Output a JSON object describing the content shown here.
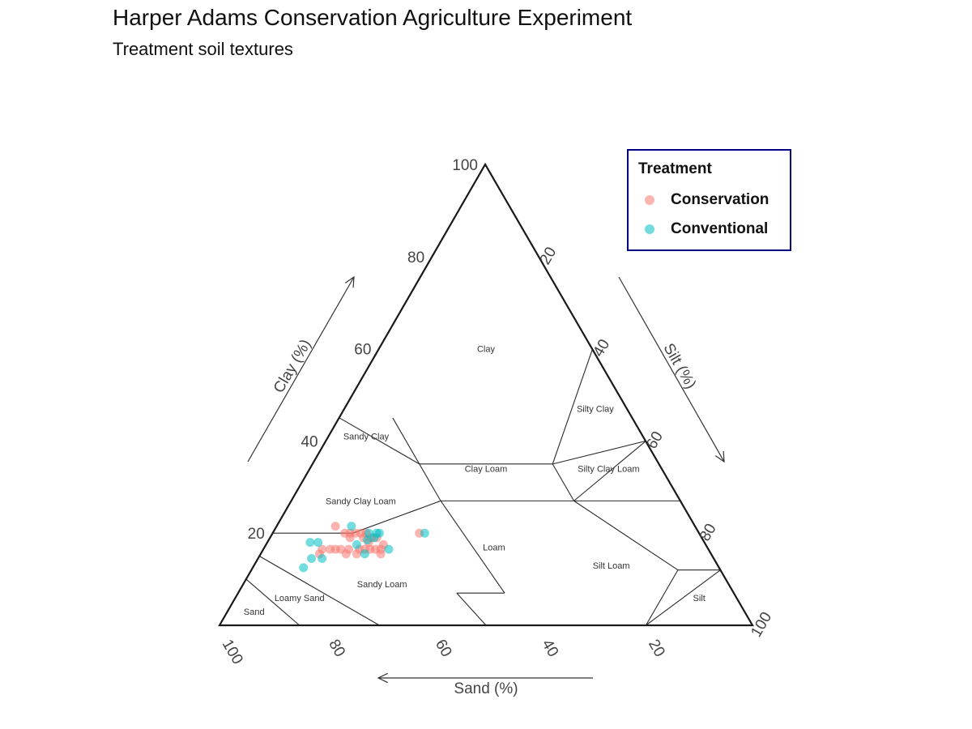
{
  "title": "Harper Adams Conservation Agriculture Experiment",
  "subtitle": "Treatment soil textures",
  "colors": {
    "Conservation": "#F8766D",
    "Conventional": "#00BFC4",
    "legend_border": "#000080"
  },
  "legend": {
    "title": "Treatment",
    "items": [
      "Conservation",
      "Conventional"
    ]
  },
  "chart_data": {
    "type": "scatter",
    "subtype": "ternary",
    "axes": {
      "clay": {
        "label": "Clay (%)",
        "ticks": [
          "20",
          "40",
          "60",
          "80",
          "100"
        ]
      },
      "silt": {
        "label": "Silt (%)",
        "ticks": [
          "20",
          "40",
          "60",
          "80",
          "100"
        ]
      },
      "sand": {
        "label": "Sand (%)",
        "ticks": [
          "100",
          "80",
          "60",
          "40",
          "20"
        ]
      }
    },
    "grid": false,
    "legend_position": "top-right",
    "regions": [
      {
        "name": "Clay",
        "sand": 20,
        "clay": 60
      },
      {
        "name": "Silty Clay",
        "sand": 6,
        "clay": 47
      },
      {
        "name": "Sandy Clay",
        "sand": 52,
        "clay": 41
      },
      {
        "name": "Clay Loam",
        "sand": 33,
        "clay": 34
      },
      {
        "name": "Silty Clay Loam",
        "sand": 10,
        "clay": 34
      },
      {
        "name": "Sandy Clay Loam",
        "sand": 60,
        "clay": 27
      },
      {
        "name": "Loam",
        "sand": 40,
        "clay": 17
      },
      {
        "name": "Silt Loam",
        "sand": 20,
        "clay": 13
      },
      {
        "name": "Sandy Loam",
        "sand": 65,
        "clay": 9
      },
      {
        "name": "Silt",
        "sand": 7,
        "clay": 6
      },
      {
        "name": "Loamy Sand",
        "sand": 82,
        "clay": 6
      },
      {
        "name": "Sand",
        "sand": 92,
        "clay": 3
      }
    ],
    "boundaries": [
      [
        [
          55,
          45
        ],
        [
          45,
          35
        ]
      ],
      [
        [
          45,
          35
        ],
        [
          20,
          35
        ]
      ],
      [
        [
          20,
          35
        ],
        [
          0,
          60
        ]
      ],
      [
        [
          20,
          35
        ],
        [
          0,
          40
        ]
      ],
      [
        [
          45,
          45
        ],
        [
          45,
          27
        ]
      ],
      [
        [
          45,
          27
        ],
        [
          20,
          27
        ]
      ],
      [
        [
          20,
          27
        ],
        [
          0,
          40
        ]
      ],
      [
        [
          20,
          27
        ],
        [
          0,
          27
        ]
      ],
      [
        [
          20,
          35
        ],
        [
          20,
          27
        ]
      ],
      [
        [
          80,
          20
        ],
        [
          65,
          20
        ]
      ],
      [
        [
          65,
          20
        ],
        [
          45,
          27
        ]
      ],
      [
        [
          45,
          27
        ],
        [
          43,
          7
        ]
      ],
      [
        [
          43,
          7
        ],
        [
          52,
          7
        ]
      ],
      [
        [
          52,
          7
        ],
        [
          50,
          0
        ]
      ],
      [
        [
          20,
          27
        ],
        [
          8,
          12
        ]
      ],
      [
        [
          8,
          12
        ],
        [
          20,
          0
        ]
      ],
      [
        [
          85,
          15
        ],
        [
          70,
          0
        ]
      ],
      [
        [
          90,
          10
        ],
        [
          85,
          0
        ]
      ],
      [
        [
          8,
          12
        ],
        [
          0,
          12
        ]
      ],
      [
        [
          0,
          12
        ],
        [
          20,
          0
        ]
      ]
    ],
    "series": [
      {
        "name": "Conservation",
        "points": [
          {
            "sand": 67.5,
            "clay": 21.5
          },
          {
            "sand": 66.5,
            "clay": 20.0
          },
          {
            "sand": 65.5,
            "clay": 20.0
          },
          {
            "sand": 64.5,
            "clay": 20.0
          },
          {
            "sand": 63.5,
            "clay": 20.0
          },
          {
            "sand": 62.5,
            "clay": 20.0
          },
          {
            "sand": 66.0,
            "clay": 19.0
          },
          {
            "sand": 63.5,
            "clay": 19.0
          },
          {
            "sand": 62.0,
            "clay": 19.0
          },
          {
            "sand": 61.0,
            "clay": 19.0
          },
          {
            "sand": 63.0,
            "clay": 18.0
          },
          {
            "sand": 60.5,
            "clay": 17.5
          },
          {
            "sand": 72.5,
            "clay": 16.5
          },
          {
            "sand": 71.0,
            "clay": 16.5
          },
          {
            "sand": 70.0,
            "clay": 16.5
          },
          {
            "sand": 69.0,
            "clay": 16.5
          },
          {
            "sand": 67.5,
            "clay": 16.5
          },
          {
            "sand": 65.5,
            "clay": 16.5
          },
          {
            "sand": 64.5,
            "clay": 16.5
          },
          {
            "sand": 63.5,
            "clay": 16.5
          },
          {
            "sand": 62.5,
            "clay": 16.5
          },
          {
            "sand": 61.5,
            "clay": 16.5
          },
          {
            "sand": 73.5,
            "clay": 15.5
          },
          {
            "sand": 68.5,
            "clay": 15.5
          },
          {
            "sand": 66.5,
            "clay": 15.5
          },
          {
            "sand": 62.0,
            "clay": 15.5
          },
          {
            "sand": 52.5,
            "clay": 20.0
          }
        ]
      },
      {
        "name": "Conventional",
        "points": [
          {
            "sand": 64.5,
            "clay": 21.5
          },
          {
            "sand": 62.0,
            "clay": 20.0
          },
          {
            "sand": 60.5,
            "clay": 20.0
          },
          {
            "sand": 60.0,
            "clay": 20.0
          },
          {
            "sand": 61.5,
            "clay": 19.0
          },
          {
            "sand": 63.0,
            "clay": 18.5
          },
          {
            "sand": 74.0,
            "clay": 18.0
          },
          {
            "sand": 72.5,
            "clay": 18.0
          },
          {
            "sand": 65.5,
            "clay": 17.5
          },
          {
            "sand": 60.0,
            "clay": 16.5
          },
          {
            "sand": 65.0,
            "clay": 15.5
          },
          {
            "sand": 75.5,
            "clay": 14.5
          },
          {
            "sand": 73.5,
            "clay": 14.5
          },
          {
            "sand": 78.0,
            "clay": 12.5
          },
          {
            "sand": 51.5,
            "clay": 20.0
          }
        ]
      }
    ]
  }
}
